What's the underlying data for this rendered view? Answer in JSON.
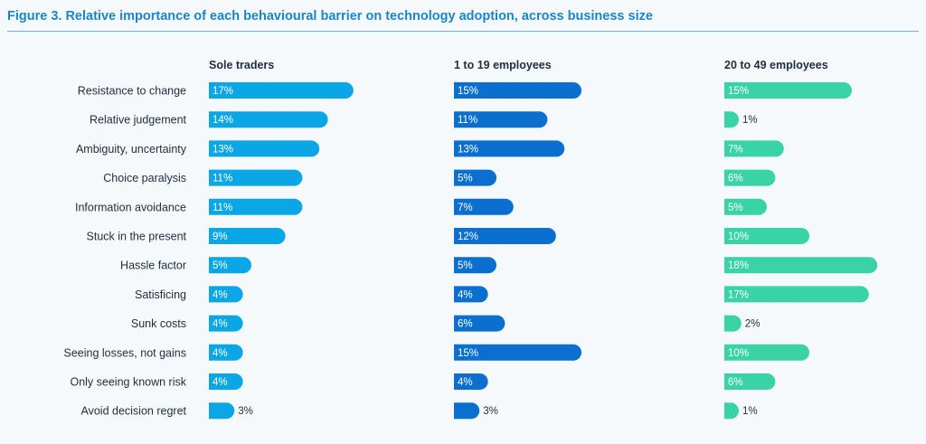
{
  "title": "Figure 3. Relative importance of each behavioural barrier on technology adoption, across business size",
  "chart_data": {
    "type": "bar",
    "title": "Figure 3. Relative importance of each behavioural barrier on technology adoption, across business size",
    "categories": [
      "Resistance to change",
      "Relative judgement",
      "Ambiguity, uncertainty",
      "Choice paralysis",
      "Information avoidance",
      "Stuck in the present",
      "Hassle factor",
      "Satisficing",
      "Sunk costs",
      "Seeing losses, not gains",
      "Only seeing known risk",
      "Avoid decision regret"
    ],
    "series": [
      {
        "name": "Sole traders",
        "color": "#0aa6e6",
        "values": [
          17,
          14,
          13,
          11,
          11,
          9,
          5,
          4,
          4,
          4,
          4,
          3
        ]
      },
      {
        "name": "1 to 19 employees",
        "color": "#0a6fce",
        "values": [
          15,
          11,
          13,
          5,
          7,
          12,
          5,
          4,
          6,
          15,
          4,
          3
        ]
      },
      {
        "name": "20 to 49 employees",
        "color": "#3ad3a6",
        "values": [
          15,
          1,
          7,
          6,
          5,
          10,
          18,
          17,
          2,
          10,
          6,
          1
        ]
      }
    ],
    "value_suffix": "%"
  }
}
